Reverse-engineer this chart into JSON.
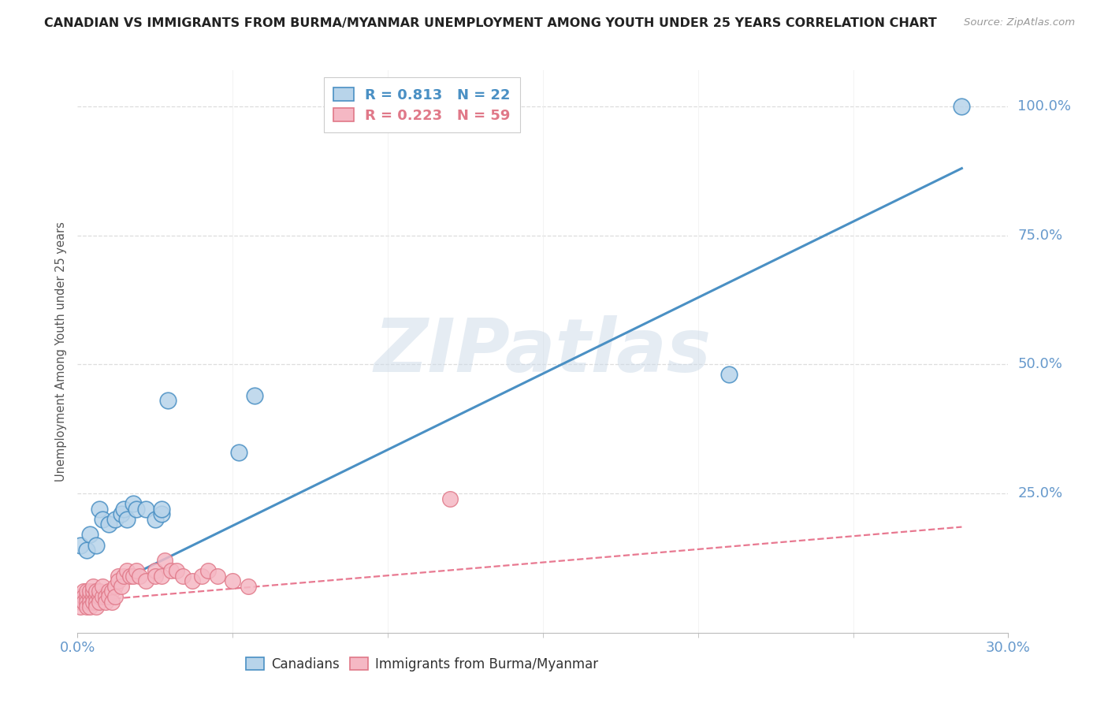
{
  "title": "CANADIAN VS IMMIGRANTS FROM BURMA/MYANMAR UNEMPLOYMENT AMONG YOUTH UNDER 25 YEARS CORRELATION CHART",
  "source": "Source: ZipAtlas.com",
  "ylabel": "Unemployment Among Youth under 25 years",
  "right_ytick_labels": [
    "100.0%",
    "75.0%",
    "50.0%",
    "25.0%"
  ],
  "right_ytick_vals": [
    1.0,
    0.75,
    0.5,
    0.25
  ],
  "legend1_label": "R = 0.813   N = 22",
  "legend2_label": "R = 0.223   N = 59",
  "watermark": "ZIPatlas",
  "canadians_x": [
    0.001,
    0.003,
    0.004,
    0.006,
    0.007,
    0.008,
    0.01,
    0.012,
    0.014,
    0.015,
    0.016,
    0.018,
    0.019,
    0.022,
    0.025,
    0.027,
    0.027,
    0.029,
    0.052,
    0.057,
    0.21,
    0.285
  ],
  "canadians_y": [
    0.15,
    0.14,
    0.17,
    0.15,
    0.22,
    0.2,
    0.19,
    0.2,
    0.21,
    0.22,
    0.2,
    0.23,
    0.22,
    0.22,
    0.2,
    0.21,
    0.22,
    0.43,
    0.33,
    0.44,
    0.48,
    1.0
  ],
  "burma_x": [
    0.001,
    0.001,
    0.001,
    0.002,
    0.002,
    0.002,
    0.003,
    0.003,
    0.003,
    0.003,
    0.004,
    0.004,
    0.004,
    0.004,
    0.005,
    0.005,
    0.005,
    0.005,
    0.006,
    0.006,
    0.006,
    0.006,
    0.007,
    0.007,
    0.007,
    0.008,
    0.008,
    0.009,
    0.009,
    0.01,
    0.01,
    0.011,
    0.011,
    0.012,
    0.012,
    0.013,
    0.013,
    0.014,
    0.015,
    0.016,
    0.017,
    0.018,
    0.019,
    0.02,
    0.022,
    0.025,
    0.025,
    0.027,
    0.028,
    0.03,
    0.032,
    0.034,
    0.037,
    0.04,
    0.042,
    0.045,
    0.05,
    0.055,
    0.12
  ],
  "burma_y": [
    0.05,
    0.04,
    0.03,
    0.06,
    0.05,
    0.04,
    0.05,
    0.04,
    0.03,
    0.06,
    0.05,
    0.04,
    0.06,
    0.03,
    0.05,
    0.06,
    0.04,
    0.07,
    0.05,
    0.04,
    0.06,
    0.03,
    0.05,
    0.06,
    0.04,
    0.05,
    0.07,
    0.05,
    0.04,
    0.06,
    0.05,
    0.06,
    0.04,
    0.07,
    0.05,
    0.09,
    0.08,
    0.07,
    0.09,
    0.1,
    0.09,
    0.09,
    0.1,
    0.09,
    0.08,
    0.1,
    0.09,
    0.09,
    0.12,
    0.1,
    0.1,
    0.09,
    0.08,
    0.09,
    0.1,
    0.09,
    0.08,
    0.07,
    0.24
  ],
  "blue_line_x": [
    0.0,
    0.285
  ],
  "blue_line_y": [
    0.04,
    0.88
  ],
  "pink_line_x": [
    0.0,
    0.285
  ],
  "pink_line_y": [
    0.04,
    0.185
  ],
  "xmin": 0.0,
  "xmax": 0.3,
  "ymin": -0.02,
  "ymax": 1.07,
  "bg_color": "#ffffff",
  "title_color": "#222222",
  "scatter_blue_fill": "#b8d4ea",
  "scatter_blue_edge": "#4a90c4",
  "scatter_pink_fill": "#f5b8c4",
  "scatter_pink_edge": "#e07888",
  "line_blue_color": "#4a90c4",
  "line_pink_color": "#e87890",
  "axis_color": "#bbbbbb",
  "grid_color": "#dddddd",
  "tick_label_color": "#6699cc",
  "source_color": "#999999",
  "watermark_color": "#ccdae8"
}
